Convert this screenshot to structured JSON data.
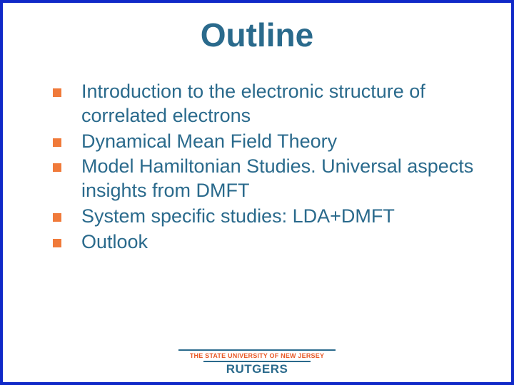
{
  "slide": {
    "title": "Outline",
    "title_color": "#2a6a8c",
    "title_fontsize": 46,
    "bullets": [
      "Introduction to the electronic structure of correlated electrons",
      "Dynamical Mean Field Theory",
      " Model Hamiltonian Studies. Universal aspects insights from DMFT",
      " System specific studies: LDA+DMFT",
      "Outlook"
    ],
    "bullet_text_color": "#2a6a8c",
    "bullet_fontsize": 27,
    "bullet_marker_color": "#f07a3a",
    "bullet_marker_size": 12,
    "border_color": "#1029c8",
    "background_color": "#ffffff"
  },
  "footer": {
    "small_text": "THE STATE UNIVERSITY OF NEW JERSEY",
    "small_color": "#e85a28",
    "small_fontsize": 9,
    "big_text": "RUTGERS",
    "big_color": "#2a6a8c",
    "big_fontsize": 17,
    "rule_color": "#2a6a8c"
  }
}
